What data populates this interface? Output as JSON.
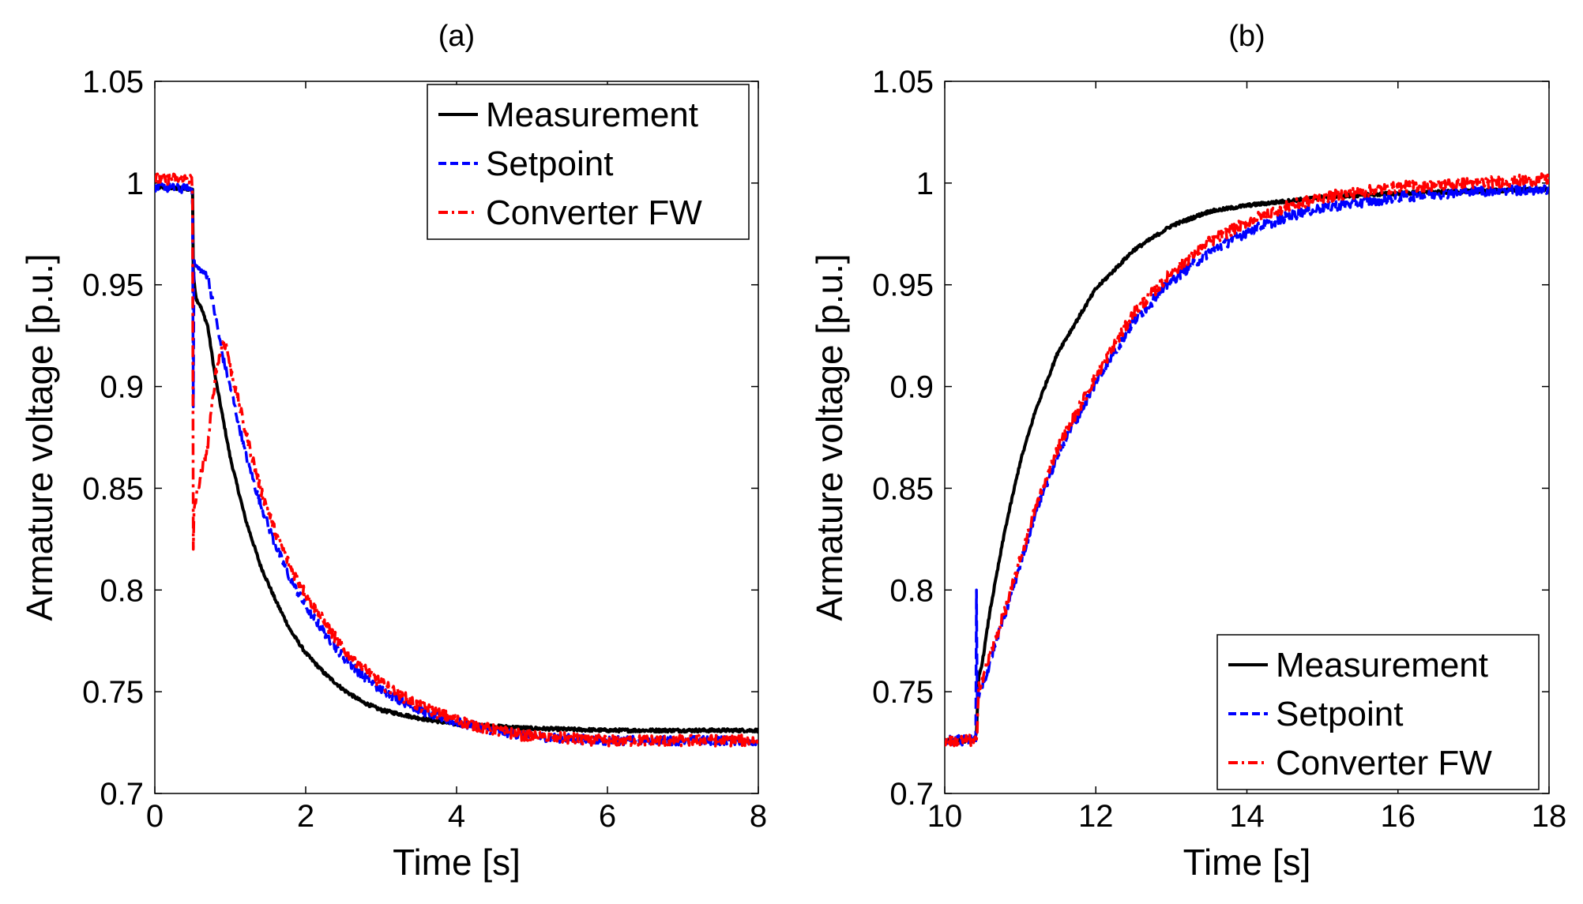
{
  "chart_data": [
    {
      "type": "line",
      "title": "(a)",
      "xlabel": "Time [s]",
      "ylabel": "Armature voltage [p.u.]",
      "xlim": [
        0,
        8
      ],
      "ylim": [
        0.7,
        1.05
      ],
      "xticks": [
        0,
        2,
        4,
        6,
        8
      ],
      "xtick_labels": [
        "0",
        "2",
        "4",
        "6",
        "8"
      ],
      "yticks": [
        0.7,
        0.75,
        0.8,
        0.85,
        0.9,
        0.95,
        1.0,
        1.05
      ],
      "ytick_labels": [
        "0.7",
        "0.75",
        "0.8",
        "0.85",
        "0.9",
        "0.95",
        "1",
        "1.05"
      ],
      "grid": false,
      "legend_position": "top-right",
      "series": [
        {
          "name": "Measurement",
          "color": "#000000",
          "dash": "solid",
          "noise": 0.0008,
          "points": [
            [
              0,
              0.998
            ],
            [
              0.5,
              0.997
            ],
            [
              0.51,
              0.955
            ],
            [
              0.55,
              0.943
            ],
            [
              0.6,
              0.94
            ],
            [
              0.7,
              0.93
            ],
            [
              0.8,
              0.905
            ],
            [
              0.9,
              0.885
            ],
            [
              1.0,
              0.865
            ],
            [
              1.2,
              0.835
            ],
            [
              1.4,
              0.812
            ],
            [
              1.6,
              0.795
            ],
            [
              1.8,
              0.78
            ],
            [
              2.0,
              0.769
            ],
            [
              2.25,
              0.759
            ],
            [
              2.5,
              0.751
            ],
            [
              2.75,
              0.745
            ],
            [
              3.0,
              0.741
            ],
            [
              3.5,
              0.737
            ],
            [
              4.0,
              0.734
            ],
            [
              4.5,
              0.733
            ],
            [
              5.0,
              0.732
            ],
            [
              6.0,
              0.731
            ],
            [
              7.0,
              0.731
            ],
            [
              8.0,
              0.731
            ]
          ]
        },
        {
          "name": "Setpoint",
          "color": "#0000ff",
          "dash": "dashed",
          "noise": 0.0022,
          "points": [
            [
              0,
              0.998
            ],
            [
              0.49,
              0.997
            ],
            [
              0.5,
              0.99
            ],
            [
              0.51,
              0.89
            ],
            [
              0.52,
              0.96
            ],
            [
              0.6,
              0.957
            ],
            [
              0.7,
              0.955
            ],
            [
              0.8,
              0.935
            ],
            [
              0.9,
              0.915
            ],
            [
              1.0,
              0.9
            ],
            [
              1.2,
              0.867
            ],
            [
              1.4,
              0.842
            ],
            [
              1.6,
              0.822
            ],
            [
              1.8,
              0.805
            ],
            [
              2.0,
              0.792
            ],
            [
              2.25,
              0.779
            ],
            [
              2.5,
              0.767
            ],
            [
              2.75,
              0.758
            ],
            [
              3.0,
              0.751
            ],
            [
              3.5,
              0.741
            ],
            [
              4.0,
              0.735
            ],
            [
              4.5,
              0.731
            ],
            [
              5.0,
              0.728
            ],
            [
              6.0,
              0.726
            ],
            [
              7.0,
              0.726
            ],
            [
              8.0,
              0.726
            ]
          ]
        },
        {
          "name": "Converter FW",
          "color": "#ff0000",
          "dash": "dashdot",
          "noise": 0.0028,
          "points": [
            [
              0,
              1.002
            ],
            [
              0.49,
              1.002
            ],
            [
              0.5,
              0.99
            ],
            [
              0.51,
              0.82
            ],
            [
              0.52,
              0.84
            ],
            [
              0.6,
              0.855
            ],
            [
              0.7,
              0.87
            ],
            [
              0.8,
              0.905
            ],
            [
              0.9,
              0.922
            ],
            [
              0.95,
              0.92
            ],
            [
              1.0,
              0.91
            ],
            [
              1.2,
              0.878
            ],
            [
              1.4,
              0.85
            ],
            [
              1.6,
              0.828
            ],
            [
              1.8,
              0.811
            ],
            [
              2.0,
              0.798
            ],
            [
              2.25,
              0.784
            ],
            [
              2.5,
              0.771
            ],
            [
              2.75,
              0.762
            ],
            [
              3.0,
              0.754
            ],
            [
              3.5,
              0.743
            ],
            [
              4.0,
              0.736
            ],
            [
              4.5,
              0.731
            ],
            [
              5.0,
              0.728
            ],
            [
              6.0,
              0.726
            ],
            [
              7.0,
              0.726
            ],
            [
              8.0,
              0.726
            ]
          ]
        }
      ],
      "legend": {
        "position": "top-right",
        "entries": [
          "Measurement",
          "Setpoint",
          "Converter FW"
        ]
      }
    },
    {
      "type": "line",
      "title": "(b)",
      "xlabel": "Time [s]",
      "ylabel": "Armature voltage [p.u.]",
      "xlim": [
        10,
        18
      ],
      "ylim": [
        0.7,
        1.05
      ],
      "xticks": [
        10,
        12,
        14,
        16,
        18
      ],
      "xtick_labels": [
        "10",
        "12",
        "14",
        "16",
        "18"
      ],
      "yticks": [
        0.7,
        0.75,
        0.8,
        0.85,
        0.9,
        0.95,
        1.0,
        1.05
      ],
      "ytick_labels": [
        "0.7",
        "0.75",
        "0.8",
        "0.85",
        "0.9",
        "0.95",
        "1",
        "1.05"
      ],
      "grid": false,
      "legend_position": "bottom-right",
      "series": [
        {
          "name": "Measurement",
          "color": "#000000",
          "dash": "solid",
          "noise": 0.0008,
          "points": [
            [
              10,
              0.726
            ],
            [
              10.4,
              0.726
            ],
            [
              10.42,
              0.73
            ],
            [
              10.45,
              0.757
            ],
            [
              10.5,
              0.765
            ],
            [
              10.6,
              0.79
            ],
            [
              10.8,
              0.83
            ],
            [
              11.0,
              0.863
            ],
            [
              11.2,
              0.888
            ],
            [
              11.5,
              0.917
            ],
            [
              12.0,
              0.948
            ],
            [
              12.5,
              0.967
            ],
            [
              13.0,
              0.979
            ],
            [
              13.5,
              0.986
            ],
            [
              14.0,
              0.989
            ],
            [
              14.5,
              0.991
            ],
            [
              15.0,
              0.993
            ],
            [
              16.0,
              0.995
            ],
            [
              17.0,
              0.996
            ],
            [
              18.0,
              0.997
            ]
          ]
        },
        {
          "name": "Setpoint",
          "color": "#0000ff",
          "dash": "dashed",
          "noise": 0.0025,
          "points": [
            [
              10,
              0.726
            ],
            [
              10.41,
              0.726
            ],
            [
              10.42,
              0.8
            ],
            [
              10.43,
              0.745
            ],
            [
              10.5,
              0.752
            ],
            [
              10.6,
              0.765
            ],
            [
              10.8,
              0.788
            ],
            [
              11.0,
              0.813
            ],
            [
              11.2,
              0.838
            ],
            [
              11.5,
              0.867
            ],
            [
              12.0,
              0.902
            ],
            [
              12.5,
              0.932
            ],
            [
              13.0,
              0.952
            ],
            [
              13.5,
              0.966
            ],
            [
              14.0,
              0.976
            ],
            [
              14.5,
              0.983
            ],
            [
              15.0,
              0.988
            ],
            [
              16.0,
              0.993
            ],
            [
              17.0,
              0.996
            ],
            [
              18.0,
              0.997
            ]
          ]
        },
        {
          "name": "Converter FW",
          "color": "#ff0000",
          "dash": "dashdot",
          "noise": 0.0028,
          "points": [
            [
              10,
              0.726
            ],
            [
              10.42,
              0.726
            ],
            [
              10.43,
              0.73
            ],
            [
              10.45,
              0.752
            ],
            [
              10.5,
              0.757
            ],
            [
              10.6,
              0.768
            ],
            [
              10.8,
              0.79
            ],
            [
              11.0,
              0.815
            ],
            [
              11.2,
              0.84
            ],
            [
              11.5,
              0.87
            ],
            [
              12.0,
              0.905
            ],
            [
              12.5,
              0.936
            ],
            [
              13.0,
              0.956
            ],
            [
              13.5,
              0.971
            ],
            [
              14.0,
              0.981
            ],
            [
              14.5,
              0.988
            ],
            [
              15.0,
              0.993
            ],
            [
              16.0,
              0.998
            ],
            [
              17.0,
              1.0
            ],
            [
              18.0,
              1.002
            ]
          ]
        }
      ],
      "legend": {
        "position": "bottom-right",
        "entries": [
          "Measurement",
          "Setpoint",
          "Converter FW"
        ]
      }
    }
  ]
}
